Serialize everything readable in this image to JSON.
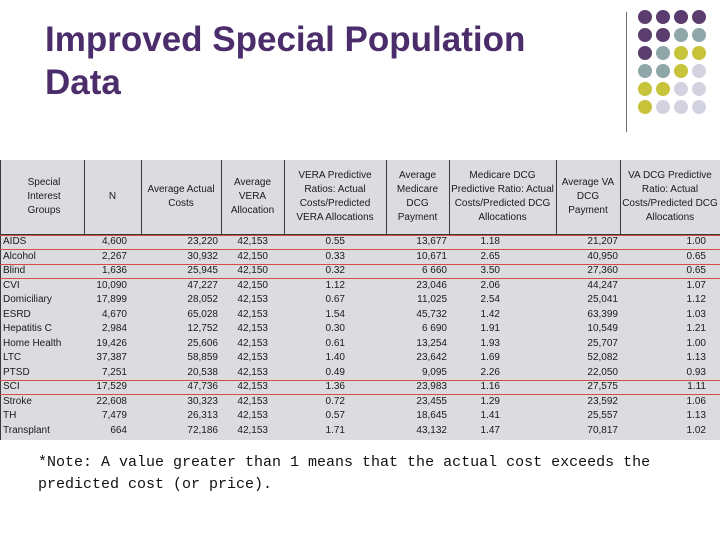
{
  "title": "Improved Special Population Data",
  "decor_dots": {
    "colors": {
      "purple": "#5a3d6e",
      "teal": "#8fa7a8",
      "olive": "#c7c33a",
      "lavender": "#d3d2e0"
    },
    "grid": [
      [
        "purple",
        "purple",
        "purple",
        "purple"
      ],
      [
        "purple",
        "purple",
        "teal",
        "teal"
      ],
      [
        "purple",
        "teal",
        "olive",
        "olive"
      ],
      [
        "teal",
        "teal",
        "olive",
        "lavender"
      ],
      [
        "olive",
        "olive",
        "lavender",
        "lavender"
      ],
      [
        "olive",
        "lavender",
        "lavender",
        "lavender"
      ]
    ]
  },
  "table": {
    "headers": [
      "Special Interest Groups",
      "N",
      "Average Actual Costs",
      "Average VERA Allocation",
      "VERA Predictive Ratios: Actual Costs/Predicted VERA Allocations",
      "Average Medicare DCG Payment",
      "Medicare DCG Predictive Ratio: Actual Costs/Predicted DCG Allocations",
      "Average VA DCG Payment",
      "VA DCG Predictive Ratio: Actual Costs/Predicted DCG Allocations"
    ],
    "rows": [
      [
        "AIDS",
        "4,600",
        "23,220",
        "42,153",
        "0.55",
        "13,677",
        "1.18",
        "21,207",
        "1.00"
      ],
      [
        "Alcohol",
        "2,267",
        "30,932",
        "42,150",
        "0.33",
        "10,671",
        "2.65",
        "40,950",
        "0.65"
      ],
      [
        "Blind",
        "1,636",
        "25,945",
        "42,150",
        "0.32",
        "6 660",
        "3.50",
        "27,360",
        "0.65"
      ],
      [
        "CVI",
        "10,090",
        "47,227",
        "42,150",
        "1.12",
        "23,046",
        "2.06",
        "44,247",
        "1.07"
      ],
      [
        "Domiciliary",
        "17,899",
        "28,052",
        "42,153",
        "0.67",
        "11,025",
        "2.54",
        "25,041",
        "1.12"
      ],
      [
        "ESRD",
        "4,670",
        "65,028",
        "42,153",
        "1.54",
        "45,732",
        "1.42",
        "63,399",
        "1.03"
      ],
      [
        "Hepatitis C",
        "2,984",
        "12,752",
        "42,153",
        "0.30",
        "6 690",
        "1.91",
        "10,549",
        "1.21"
      ],
      [
        "Home Health",
        "19,426",
        "25,606",
        "42,153",
        "0.61",
        "13,254",
        "1.93",
        "25,707",
        "1.00"
      ],
      [
        "LTC",
        "37,387",
        "58,859",
        "42,153",
        "1.40",
        "23,642",
        "1.69",
        "52,082",
        "1.13"
      ],
      [
        "PTSD",
        "7,251",
        "20,538",
        "42,153",
        "0.49",
        "9,095",
        "2.26",
        "22,050",
        "0.93"
      ],
      [
        "SCI",
        "17,529",
        "47,736",
        "42,153",
        "1.36",
        "23,983",
        "1.16",
        "27,575",
        "1.11"
      ],
      [
        "Stroke",
        "22,608",
        "30,323",
        "42,153",
        "0.72",
        "23,455",
        "1.29",
        "23,592",
        "1.06"
      ],
      [
        "TH",
        "7,479",
        "26,313",
        "42,153",
        "0.57",
        "18,645",
        "1.41",
        "25,557",
        "1.13"
      ],
      [
        "Transplant",
        "664",
        "72,186",
        "42,153",
        "1.71",
        "43,132",
        "1.47",
        "70,817",
        "1.02"
      ]
    ]
  },
  "note": "*Note: A value greater than 1 means that the actual cost exceeds the predicted cost (or price)."
}
